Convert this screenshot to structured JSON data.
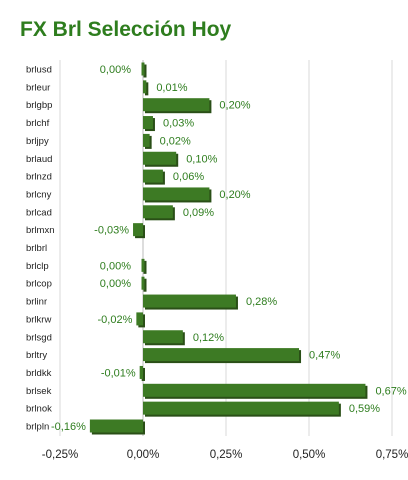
{
  "chart_data": {
    "type": "bar",
    "orientation": "horizontal",
    "title": "FX Brl Selección Hoy",
    "categories": [
      "brlusd",
      "brleur",
      "brlgbp",
      "brlchf",
      "brljpy",
      "brlaud",
      "brlnzd",
      "brlcny",
      "brlcad",
      "brlmxn",
      "brlbrl",
      "brlclp",
      "brlcop",
      "brlinr",
      "brlkrw",
      "brlsgd",
      "brltry",
      "brldkk",
      "brlsek",
      "brlnok",
      "brlpln"
    ],
    "values": [
      0.0,
      0.01,
      0.2,
      0.03,
      0.02,
      0.1,
      0.06,
      0.2,
      0.09,
      -0.03,
      null,
      0.0,
      0.0,
      0.28,
      -0.02,
      0.12,
      0.47,
      -0.01,
      0.67,
      0.59,
      -0.16
    ],
    "value_labels": [
      "0,00%",
      "0,01%",
      "0,20%",
      "0,03%",
      "0,02%",
      "0,10%",
      "0,06%",
      "0,20%",
      "0,09%",
      "-0,03%",
      "",
      "0,00%",
      "0,00%",
      "0,28%",
      "-0,02%",
      "0,12%",
      "0,47%",
      "-0,01%",
      "0,67%",
      "0,59%",
      "-0,16%"
    ],
    "xlim": [
      -0.25,
      0.75
    ],
    "x_ticks": [
      -0.25,
      0,
      0.25,
      0.5,
      0.75
    ],
    "x_tick_labels": [
      "-0,25%",
      "0,00%",
      "0,25%",
      "0,50%",
      "0,75%"
    ],
    "grid": true,
    "legend": "none",
    "colors": {
      "bar": "#3d7a24",
      "bar_shadow": "#2a4f17",
      "label": "#2e7d1e",
      "grid": "#d9d9d9"
    }
  }
}
